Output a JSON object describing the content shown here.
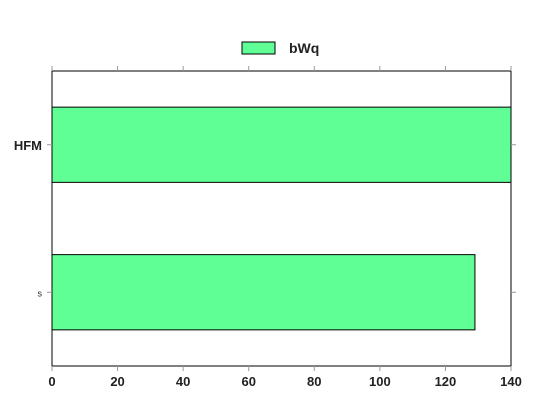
{
  "chart_data": {
    "type": "bar",
    "orientation": "horizontal",
    "categories": [
      "HFM",
      "s"
    ],
    "series": [
      {
        "name": "bWq",
        "values": [
          140,
          129
        ],
        "color": "#5fff96"
      }
    ],
    "xlim": [
      0,
      140
    ],
    "xticks": [
      "0",
      "20",
      "40",
      "60",
      "80",
      "100",
      "120",
      "140"
    ],
    "legend": "top-center",
    "grid": false
  }
}
